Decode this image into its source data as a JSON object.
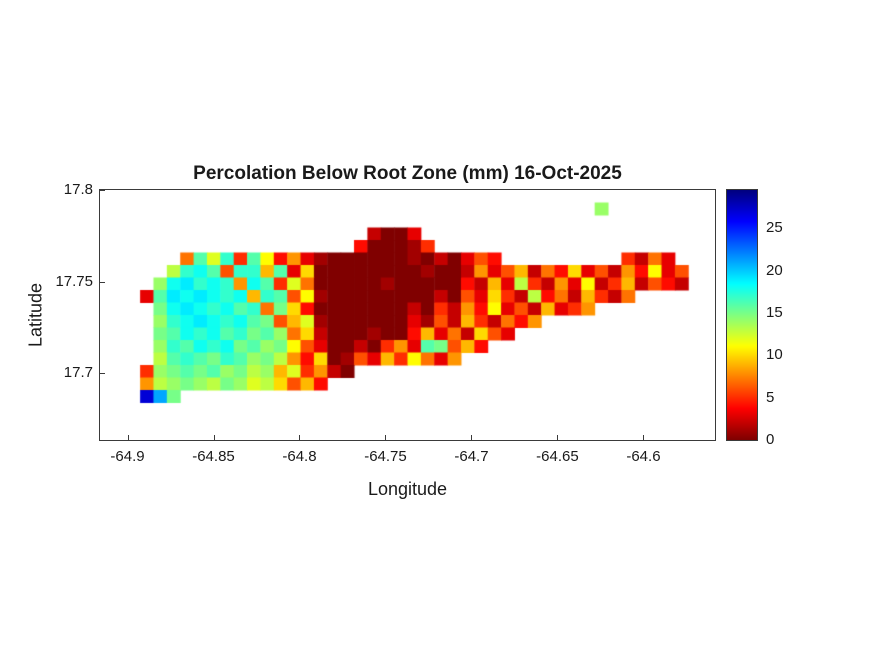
{
  "title": "Percolation Below Root Zone (mm) 16-Oct-2025",
  "axes": {
    "xlabel": "Longitude",
    "ylabel": "Latitude",
    "x_ticks": [
      -64.9,
      -64.85,
      -64.8,
      -64.75,
      -64.7,
      -64.65,
      -64.6
    ],
    "y_ticks": [
      17.8,
      17.75,
      17.7
    ]
  },
  "colorbar": {
    "ticks": [
      0,
      5,
      10,
      15,
      20,
      25
    ],
    "vmin": 0,
    "vmax": 29.5,
    "colormap": "jet-reversed",
    "top_color": "#00007f",
    "bottom_color": "#7f0000"
  },
  "chart_data": {
    "type": "heatmap",
    "title": "Percolation Below Root Zone (mm) 16-Oct-2025",
    "value_label": "Percolation Below Root Zone (mm)",
    "date": "16-Oct-2025",
    "xlabel": "Longitude",
    "ylabel": "Latitude",
    "xlim": [
      -64.916,
      -64.5584
    ],
    "ylim": [
      17.6634,
      17.8
    ],
    "vmin": 0,
    "vmax": 29.5,
    "legend": "none",
    "grid_lines": "off",
    "grid": {
      "cols": 46,
      "rows": 20
    },
    "segments": [
      {
        "r": 1,
        "c0": 37,
        "v": [
          14
        ]
      },
      {
        "r": 3,
        "c0": 20,
        "v": [
          2,
          0,
          0,
          3
        ]
      },
      {
        "r": 4,
        "c0": 19,
        "v": [
          4,
          0,
          0,
          0,
          1,
          5
        ]
      },
      {
        "r": 5,
        "c0": 6,
        "v": [
          7,
          16,
          12,
          17,
          5,
          16,
          11,
          4,
          8,
          3,
          1,
          0,
          0,
          0,
          0,
          0,
          0,
          1,
          0,
          2,
          0,
          3,
          6,
          4
        ]
      },
      {
        "r": 5,
        "c0": 39,
        "v": [
          5,
          2,
          7,
          3
        ]
      },
      {
        "r": 6,
        "c0": 5,
        "v": [
          13,
          17,
          18,
          16,
          6,
          17,
          17,
          9,
          16,
          3,
          10,
          0,
          0,
          0,
          0,
          0,
          0,
          0,
          0,
          1,
          0,
          0,
          2,
          8,
          3,
          6,
          9,
          2,
          7,
          4,
          10,
          3,
          6,
          2,
          8,
          4,
          11,
          3,
          6
        ]
      },
      {
        "r": 7,
        "c0": 4,
        "v": [
          14,
          18,
          19,
          17,
          18,
          17,
          8,
          18,
          16,
          5,
          12,
          7,
          0,
          0,
          0,
          0,
          0,
          1,
          0,
          0,
          0,
          0,
          0,
          4,
          2,
          9,
          3,
          13,
          5,
          2,
          8,
          3,
          11,
          2,
          5,
          9,
          2,
          6,
          4,
          2
        ]
      },
      {
        "r": 8,
        "c0": 3,
        "v": [
          3,
          16,
          19,
          18,
          19,
          18,
          17,
          18,
          9,
          17,
          16,
          6,
          11,
          1,
          0,
          0,
          0,
          0,
          0,
          0,
          0,
          0,
          2,
          0,
          6,
          3,
          10,
          5,
          2,
          13,
          4,
          7,
          2,
          9,
          5,
          2,
          7
        ]
      },
      {
        "r": 9,
        "c0": 4,
        "v": [
          15,
          18,
          19,
          18,
          17,
          18,
          16,
          17,
          7,
          15,
          10,
          4,
          0,
          0,
          0,
          0,
          0,
          0,
          0,
          2,
          0,
          5,
          2,
          8,
          4,
          11,
          3,
          6,
          2,
          9,
          3,
          5,
          8
        ]
      },
      {
        "r": 10,
        "c0": 4,
        "v": [
          14,
          17,
          18,
          19,
          18,
          17,
          18,
          16,
          15,
          6,
          9,
          12,
          1,
          0,
          0,
          0,
          0,
          0,
          0,
          3,
          1,
          6,
          2,
          9,
          5,
          2,
          7,
          4,
          8
        ]
      },
      {
        "r": 11,
        "c0": 4,
        "v": [
          15,
          16,
          18,
          17,
          18,
          16,
          17,
          15,
          16,
          14,
          7,
          10,
          2,
          0,
          0,
          0,
          1,
          0,
          0,
          4,
          9,
          3,
          7,
          2,
          10,
          6,
          3
        ]
      },
      {
        "r": 12,
        "c0": 4,
        "v": [
          14,
          17,
          16,
          18,
          17,
          18,
          15,
          16,
          14,
          15,
          11,
          6,
          3,
          0,
          0,
          2,
          0,
          5,
          8,
          3,
          16,
          15,
          6,
          9,
          4
        ]
      },
      {
        "r": 13,
        "c0": 4,
        "v": [
          13,
          16,
          17,
          16,
          15,
          17,
          16,
          14,
          15,
          13,
          8,
          4,
          10,
          0,
          1,
          6,
          3,
          9,
          5,
          11,
          7,
          3,
          8
        ]
      },
      {
        "r": 14,
        "c0": 3,
        "v": [
          5,
          14,
          15,
          16,
          15,
          16,
          14,
          15,
          13,
          14,
          9,
          12,
          5,
          8,
          2,
          0
        ]
      },
      {
        "r": 15,
        "c0": 3,
        "v": [
          8,
          13,
          14,
          15,
          14,
          13,
          15,
          14,
          12,
          13,
          10,
          6,
          9,
          4
        ]
      },
      {
        "r": 16,
        "c0": 3,
        "v": [
          27,
          21,
          15
        ]
      }
    ]
  }
}
